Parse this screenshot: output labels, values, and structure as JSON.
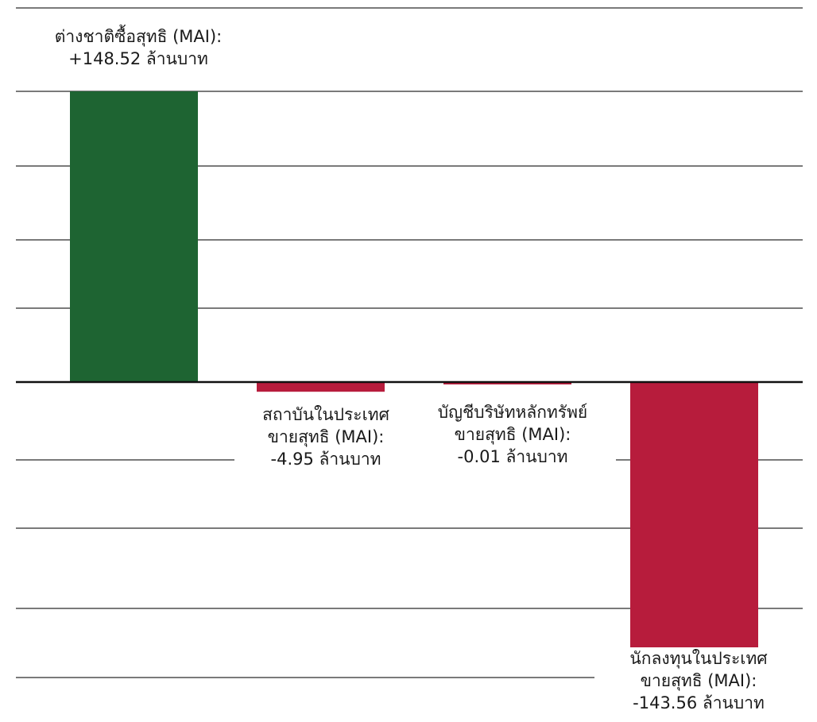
{
  "chart_data": {
    "type": "bar",
    "ylim": [
      -160,
      160
    ],
    "grid": true,
    "bars": [
      {
        "value": 148.52,
        "color": "#1e6432",
        "label_lines": [
          "ต่างชาติซื้อสุทธิ (MAI):",
          "+148.52 ล้านบาท"
        ]
      },
      {
        "value": -4.95,
        "color": "#b71c3c",
        "label_lines": [
          "สถาบันในประเทศ",
          "ขายสุทธิ (MAI):",
          "-4.95 ล้านบาท"
        ]
      },
      {
        "value": -0.01,
        "color": "#b71c3c",
        "label_lines": [
          "บัญชีบริษัทหลักทรัพย์",
          "ขายสุทธิ (MAI):",
          "-0.01 ล้านบาท"
        ]
      },
      {
        "value": -143.56,
        "color": "#b71c3c",
        "label_lines": [
          "นักลงทุนในประเทศ",
          "ขายสุทธิ (MAI):",
          "-143.56 ล้านบาท"
        ]
      }
    ]
  }
}
